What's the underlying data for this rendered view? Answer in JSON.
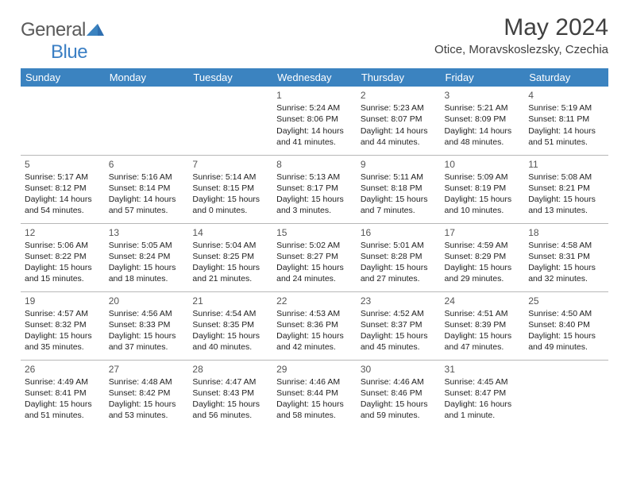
{
  "logo": {
    "word1": "General",
    "word2": "Blue"
  },
  "header": {
    "title": "May 2024",
    "location": "Otice, Moravskoslezsky, Czechia"
  },
  "colors": {
    "header_bg": "#3b83c0",
    "header_text": "#ffffff",
    "logo_gray": "#5a5a5a",
    "logo_blue": "#3b7fc4",
    "cell_border": "#b8b8b8",
    "text": "#222222"
  },
  "weekdays": [
    "Sunday",
    "Monday",
    "Tuesday",
    "Wednesday",
    "Thursday",
    "Friday",
    "Saturday"
  ],
  "weeks": [
    [
      null,
      null,
      null,
      {
        "n": "1",
        "sr": "Sunrise: 5:24 AM",
        "ss": "Sunset: 8:06 PM",
        "d1": "Daylight: 14 hours",
        "d2": "and 41 minutes."
      },
      {
        "n": "2",
        "sr": "Sunrise: 5:23 AM",
        "ss": "Sunset: 8:07 PM",
        "d1": "Daylight: 14 hours",
        "d2": "and 44 minutes."
      },
      {
        "n": "3",
        "sr": "Sunrise: 5:21 AM",
        "ss": "Sunset: 8:09 PM",
        "d1": "Daylight: 14 hours",
        "d2": "and 48 minutes."
      },
      {
        "n": "4",
        "sr": "Sunrise: 5:19 AM",
        "ss": "Sunset: 8:11 PM",
        "d1": "Daylight: 14 hours",
        "d2": "and 51 minutes."
      }
    ],
    [
      {
        "n": "5",
        "sr": "Sunrise: 5:17 AM",
        "ss": "Sunset: 8:12 PM",
        "d1": "Daylight: 14 hours",
        "d2": "and 54 minutes."
      },
      {
        "n": "6",
        "sr": "Sunrise: 5:16 AM",
        "ss": "Sunset: 8:14 PM",
        "d1": "Daylight: 14 hours",
        "d2": "and 57 minutes."
      },
      {
        "n": "7",
        "sr": "Sunrise: 5:14 AM",
        "ss": "Sunset: 8:15 PM",
        "d1": "Daylight: 15 hours",
        "d2": "and 0 minutes."
      },
      {
        "n": "8",
        "sr": "Sunrise: 5:13 AM",
        "ss": "Sunset: 8:17 PM",
        "d1": "Daylight: 15 hours",
        "d2": "and 3 minutes."
      },
      {
        "n": "9",
        "sr": "Sunrise: 5:11 AM",
        "ss": "Sunset: 8:18 PM",
        "d1": "Daylight: 15 hours",
        "d2": "and 7 minutes."
      },
      {
        "n": "10",
        "sr": "Sunrise: 5:09 AM",
        "ss": "Sunset: 8:19 PM",
        "d1": "Daylight: 15 hours",
        "d2": "and 10 minutes."
      },
      {
        "n": "11",
        "sr": "Sunrise: 5:08 AM",
        "ss": "Sunset: 8:21 PM",
        "d1": "Daylight: 15 hours",
        "d2": "and 13 minutes."
      }
    ],
    [
      {
        "n": "12",
        "sr": "Sunrise: 5:06 AM",
        "ss": "Sunset: 8:22 PM",
        "d1": "Daylight: 15 hours",
        "d2": "and 15 minutes."
      },
      {
        "n": "13",
        "sr": "Sunrise: 5:05 AM",
        "ss": "Sunset: 8:24 PM",
        "d1": "Daylight: 15 hours",
        "d2": "and 18 minutes."
      },
      {
        "n": "14",
        "sr": "Sunrise: 5:04 AM",
        "ss": "Sunset: 8:25 PM",
        "d1": "Daylight: 15 hours",
        "d2": "and 21 minutes."
      },
      {
        "n": "15",
        "sr": "Sunrise: 5:02 AM",
        "ss": "Sunset: 8:27 PM",
        "d1": "Daylight: 15 hours",
        "d2": "and 24 minutes."
      },
      {
        "n": "16",
        "sr": "Sunrise: 5:01 AM",
        "ss": "Sunset: 8:28 PM",
        "d1": "Daylight: 15 hours",
        "d2": "and 27 minutes."
      },
      {
        "n": "17",
        "sr": "Sunrise: 4:59 AM",
        "ss": "Sunset: 8:29 PM",
        "d1": "Daylight: 15 hours",
        "d2": "and 29 minutes."
      },
      {
        "n": "18",
        "sr": "Sunrise: 4:58 AM",
        "ss": "Sunset: 8:31 PM",
        "d1": "Daylight: 15 hours",
        "d2": "and 32 minutes."
      }
    ],
    [
      {
        "n": "19",
        "sr": "Sunrise: 4:57 AM",
        "ss": "Sunset: 8:32 PM",
        "d1": "Daylight: 15 hours",
        "d2": "and 35 minutes."
      },
      {
        "n": "20",
        "sr": "Sunrise: 4:56 AM",
        "ss": "Sunset: 8:33 PM",
        "d1": "Daylight: 15 hours",
        "d2": "and 37 minutes."
      },
      {
        "n": "21",
        "sr": "Sunrise: 4:54 AM",
        "ss": "Sunset: 8:35 PM",
        "d1": "Daylight: 15 hours",
        "d2": "and 40 minutes."
      },
      {
        "n": "22",
        "sr": "Sunrise: 4:53 AM",
        "ss": "Sunset: 8:36 PM",
        "d1": "Daylight: 15 hours",
        "d2": "and 42 minutes."
      },
      {
        "n": "23",
        "sr": "Sunrise: 4:52 AM",
        "ss": "Sunset: 8:37 PM",
        "d1": "Daylight: 15 hours",
        "d2": "and 45 minutes."
      },
      {
        "n": "24",
        "sr": "Sunrise: 4:51 AM",
        "ss": "Sunset: 8:39 PM",
        "d1": "Daylight: 15 hours",
        "d2": "and 47 minutes."
      },
      {
        "n": "25",
        "sr": "Sunrise: 4:50 AM",
        "ss": "Sunset: 8:40 PM",
        "d1": "Daylight: 15 hours",
        "d2": "and 49 minutes."
      }
    ],
    [
      {
        "n": "26",
        "sr": "Sunrise: 4:49 AM",
        "ss": "Sunset: 8:41 PM",
        "d1": "Daylight: 15 hours",
        "d2": "and 51 minutes."
      },
      {
        "n": "27",
        "sr": "Sunrise: 4:48 AM",
        "ss": "Sunset: 8:42 PM",
        "d1": "Daylight: 15 hours",
        "d2": "and 53 minutes."
      },
      {
        "n": "28",
        "sr": "Sunrise: 4:47 AM",
        "ss": "Sunset: 8:43 PM",
        "d1": "Daylight: 15 hours",
        "d2": "and 56 minutes."
      },
      {
        "n": "29",
        "sr": "Sunrise: 4:46 AM",
        "ss": "Sunset: 8:44 PM",
        "d1": "Daylight: 15 hours",
        "d2": "and 58 minutes."
      },
      {
        "n": "30",
        "sr": "Sunrise: 4:46 AM",
        "ss": "Sunset: 8:46 PM",
        "d1": "Daylight: 15 hours",
        "d2": "and 59 minutes."
      },
      {
        "n": "31",
        "sr": "Sunrise: 4:45 AM",
        "ss": "Sunset: 8:47 PM",
        "d1": "Daylight: 16 hours",
        "d2": "and 1 minute."
      },
      null
    ]
  ]
}
